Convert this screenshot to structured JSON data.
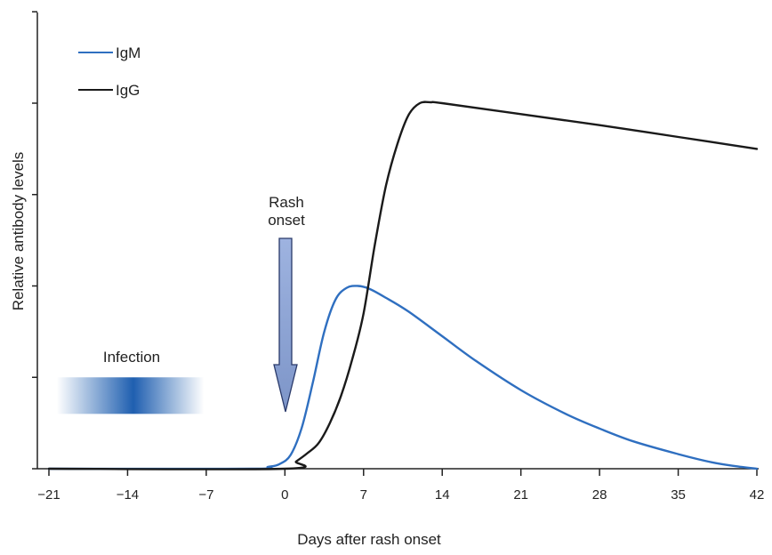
{
  "chart_data": {
    "type": "line",
    "title": "",
    "xlabel": "Days after rash onset",
    "ylabel": "Relative antibody levels",
    "xlim": [
      -21,
      42
    ],
    "ylim": [
      0,
      4
    ],
    "x_ticks": [
      -21,
      -14,
      -7,
      0,
      7,
      14,
      21,
      28,
      35,
      42
    ],
    "x_tick_labels": [
      "−21",
      "−14",
      "−7",
      "0",
      "7",
      "14",
      "21",
      "28",
      "35",
      "42"
    ],
    "y_ticks": [
      0,
      1,
      2,
      3,
      4,
      5
    ],
    "y_tick_labels": false,
    "grid": false,
    "legend_position": "top-left",
    "series": [
      {
        "name": "IgM",
        "color": "#2f6fc0",
        "x": [
          -21,
          -3,
          -1.5,
          -0.5,
          0.5,
          1.5,
          2.5,
          3.5,
          4.5,
          5.5,
          6.5,
          7.5,
          9,
          11,
          14,
          17,
          21,
          25,
          28,
          31,
          35,
          38,
          40,
          42
        ],
        "y": [
          0,
          0,
          0.02,
          0.05,
          0.15,
          0.45,
          0.95,
          1.5,
          1.85,
          1.98,
          2.0,
          1.97,
          1.87,
          1.72,
          1.45,
          1.18,
          0.86,
          0.6,
          0.44,
          0.3,
          0.16,
          0.07,
          0.03,
          0
        ]
      },
      {
        "name": "IgG",
        "color": "#1a1a1a",
        "x": [
          -21,
          0,
          1,
          2,
          3,
          4,
          5,
          6,
          7,
          8,
          9,
          10,
          11,
          12,
          13,
          14,
          21,
          28,
          35,
          42
        ],
        "y": [
          0,
          0,
          0.08,
          0.17,
          0.28,
          0.5,
          0.8,
          1.2,
          1.7,
          2.45,
          3.1,
          3.55,
          3.87,
          4.0,
          4.01,
          4.0,
          3.88,
          3.76,
          3.63,
          3.5
        ]
      }
    ],
    "annotations": {
      "rash_onset": {
        "label_line1": "Rash",
        "label_line2": "onset",
        "x": 0,
        "arrow_color": "#8ea8d8",
        "arrow_stroke": "#2a3a6a"
      },
      "infection": {
        "label": "Infection",
        "x_start": -20.3,
        "x_end": -7.2,
        "peak_x": -14,
        "band_low": 0.6,
        "band_high": 1.0,
        "color": "#1f5fb0"
      }
    }
  }
}
